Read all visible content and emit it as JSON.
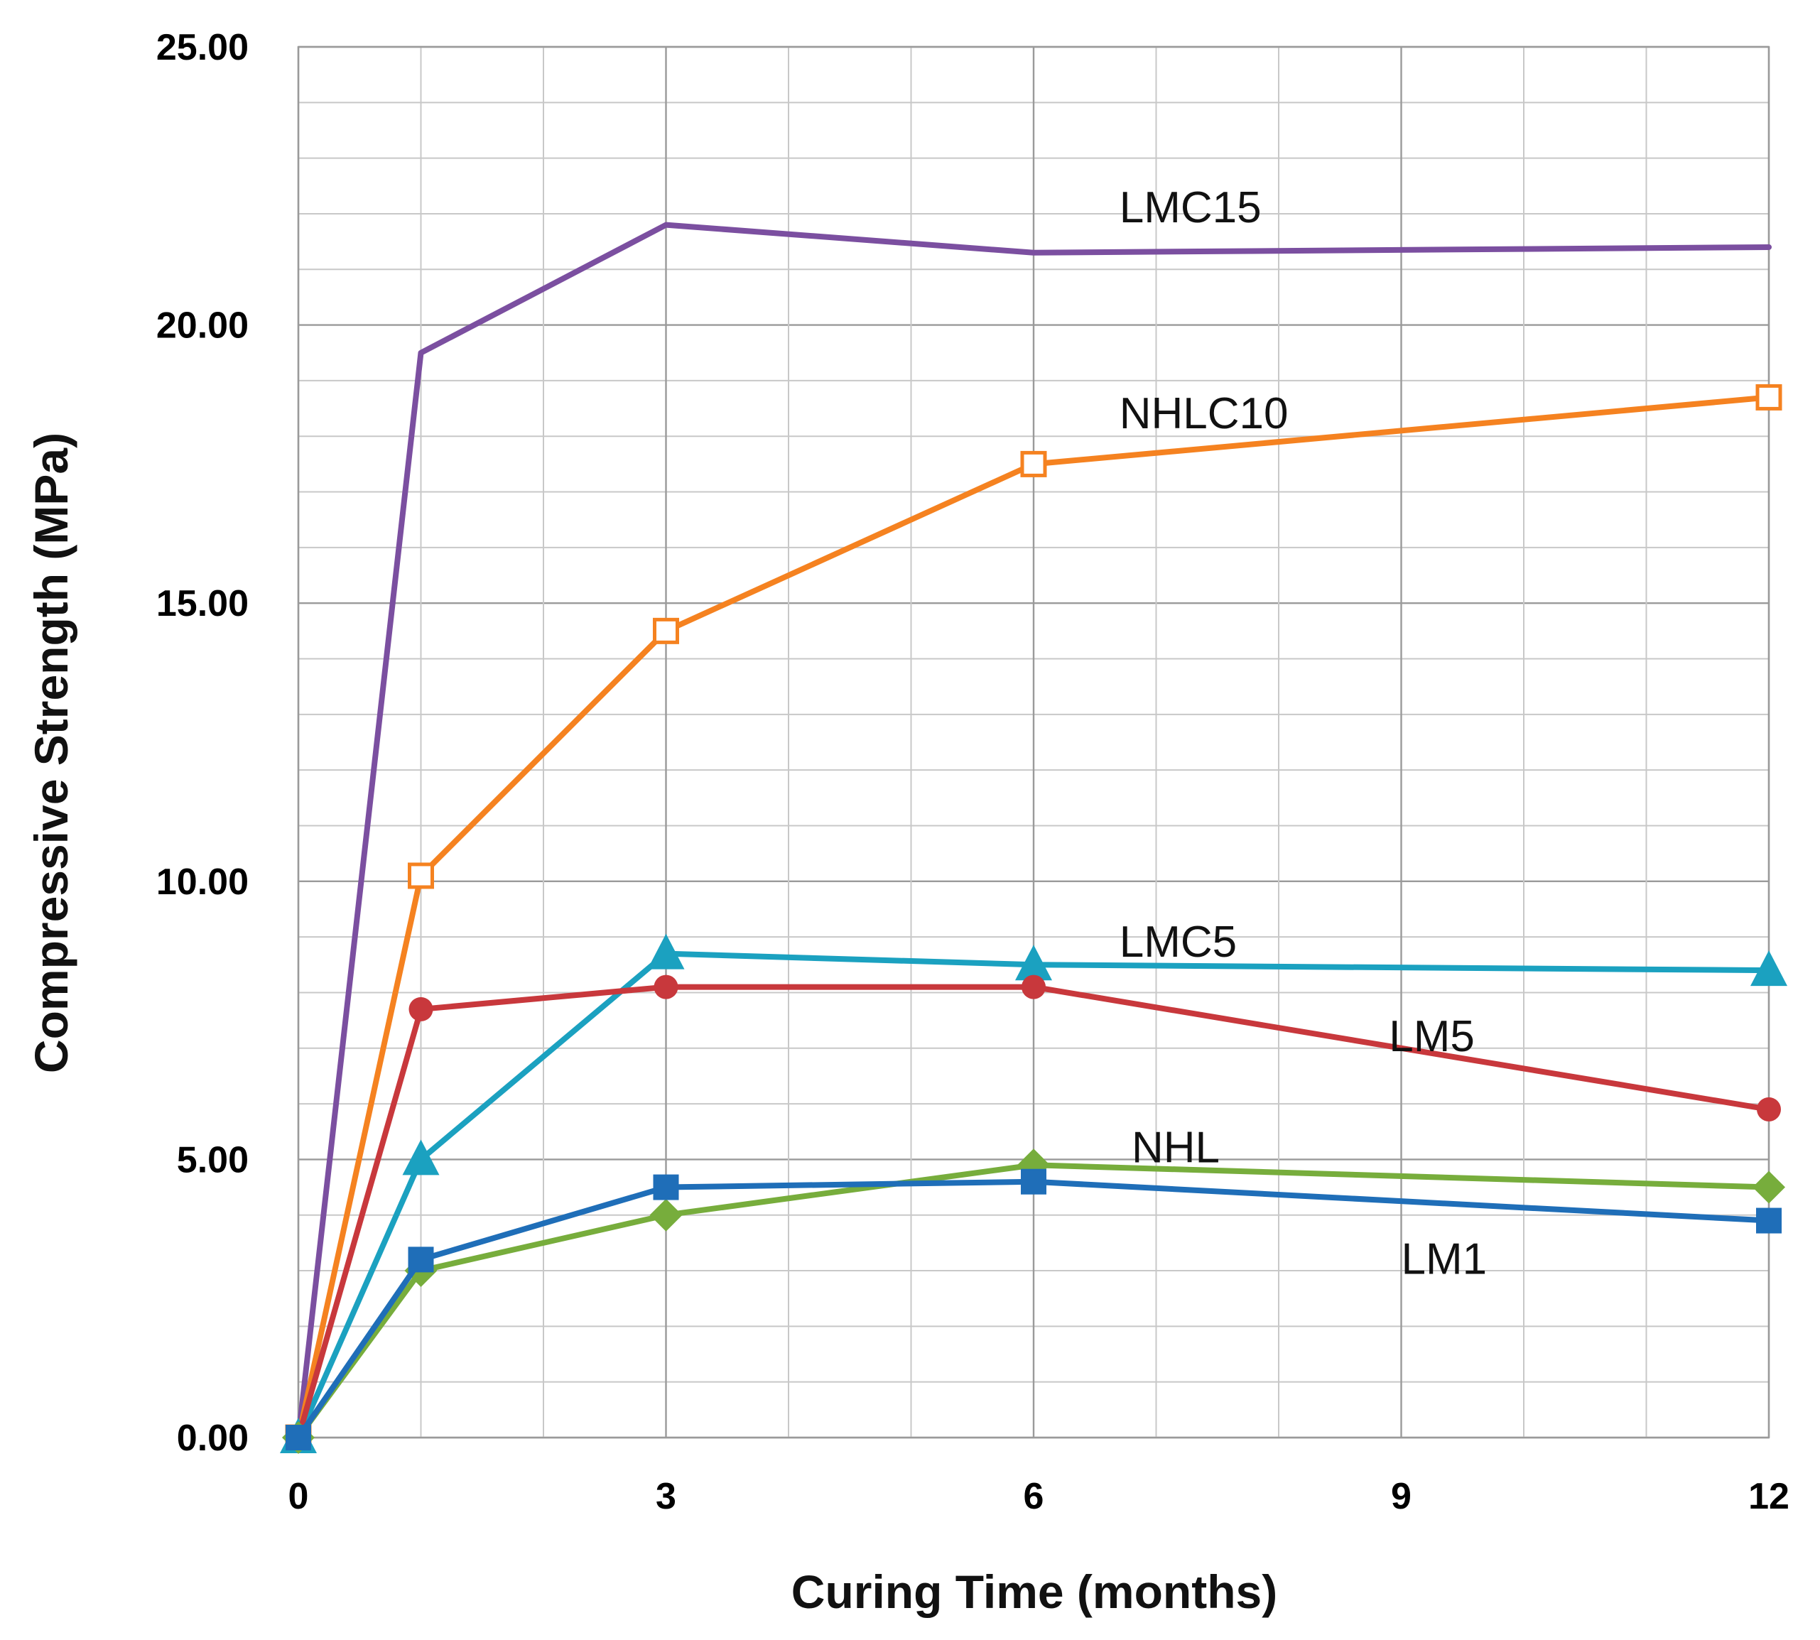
{
  "chart_data": {
    "type": "line",
    "title": "",
    "xlabel": "Curing Time (months)",
    "ylabel": "Compressive Strength (MPa)",
    "xlim": [
      0,
      12
    ],
    "ylim": [
      0,
      25
    ],
    "x_ticks": [
      0,
      3,
      6,
      9,
      12
    ],
    "x_tick_labels": [
      "0",
      "3",
      "6",
      "9",
      "12"
    ],
    "y_ticks": [
      0,
      5,
      10,
      15,
      20,
      25
    ],
    "y_tick_labels": [
      "0.00",
      "5.00",
      "10.00",
      "15.00",
      "20.00",
      "25.00"
    ],
    "grid": true,
    "series": [
      {
        "name": "LMC15",
        "color": "#7b4fa0",
        "marker": "none",
        "label_at": [
          6.7,
          22.1
        ],
        "x": [
          0,
          1,
          3,
          6,
          12
        ],
        "values": [
          0.0,
          19.5,
          21.8,
          21.3,
          21.4
        ]
      },
      {
        "name": "NHLC10",
        "color": "#f58220",
        "marker": "square-open",
        "label_at": [
          6.7,
          18.4
        ],
        "x": [
          0,
          1,
          3,
          6,
          12
        ],
        "values": [
          0.0,
          10.1,
          14.5,
          17.5,
          18.7
        ]
      },
      {
        "name": "LMC5",
        "color": "#1ba1c0",
        "marker": "triangle",
        "label_at": [
          6.7,
          8.9
        ],
        "x": [
          0,
          1,
          3,
          6,
          12
        ],
        "values": [
          0.0,
          5.0,
          8.7,
          8.5,
          8.4
        ]
      },
      {
        "name": "LM5",
        "color": "#c8383c",
        "marker": "circle",
        "label_at": [
          8.9,
          7.2
        ],
        "x": [
          0,
          1,
          3,
          6,
          12
        ],
        "values": [
          0.0,
          7.7,
          8.1,
          8.1,
          5.9
        ]
      },
      {
        "name": "NHL",
        "color": "#77ad3c",
        "marker": "diamond",
        "label_at": [
          6.8,
          5.2
        ],
        "x": [
          0,
          1,
          3,
          6,
          12
        ],
        "values": [
          0.0,
          3.0,
          4.0,
          4.9,
          4.5
        ]
      },
      {
        "name": "LM1",
        "color": "#1f6eb8",
        "marker": "square",
        "label_at": [
          9.0,
          3.2
        ],
        "x": [
          0,
          1,
          3,
          6,
          12
        ],
        "values": [
          0.0,
          3.2,
          4.5,
          4.6,
          3.9
        ]
      }
    ]
  }
}
